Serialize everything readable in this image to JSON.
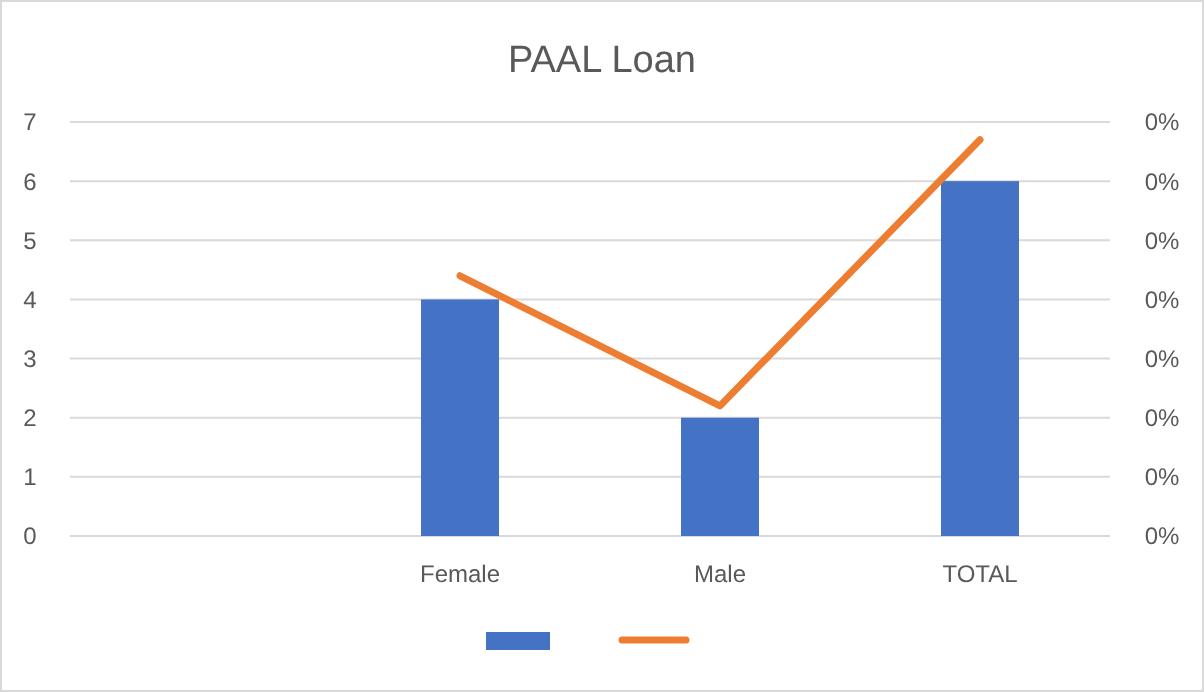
{
  "chart_data": {
    "type": "bar",
    "title": "PAAL Loan",
    "categories": [
      null,
      "Female",
      "Male",
      "TOTAL"
    ],
    "series": [
      {
        "color": "#4472c4",
        "values": [
          null,
          4,
          2,
          6
        ]
      },
      {
        "type": "line",
        "axis": "y2",
        "color": "#ed7d31",
        "values": [
          null,
          0.22,
          0.11,
          0.335
        ]
      }
    ],
    "ylim": [
      0,
      7
    ],
    "yticks": [
      0,
      1,
      2,
      3,
      4,
      5,
      6,
      7
    ],
    "y2lim": [
      0,
      0.35
    ],
    "y2ticks": [
      {
        "value": 0,
        "label": "0%"
      },
      {
        "value": 0.05,
        "label": "0%"
      },
      {
        "value": 0.1,
        "label": "0%"
      },
      {
        "value": 0.15,
        "label": "0%"
      },
      {
        "value": 0.2,
        "label": "0%"
      },
      {
        "value": 0.25,
        "label": "0%"
      },
      {
        "value": 0.3,
        "label": "0%"
      },
      {
        "value": 0.35,
        "label": "0%"
      }
    ],
    "grid": "y",
    "marker": "none",
    "line_style": "solid"
  }
}
